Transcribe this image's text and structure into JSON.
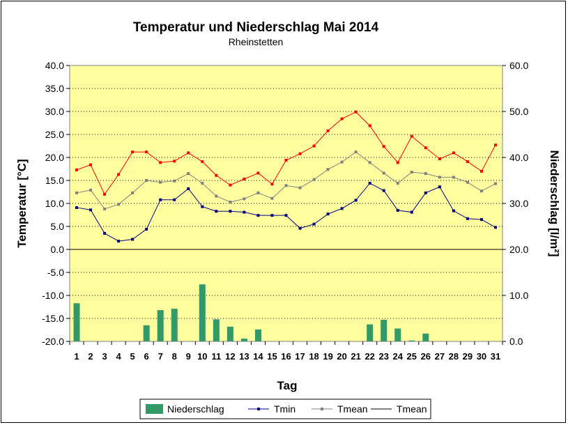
{
  "chart_data": {
    "type": "bar+line",
    "title": "Temperatur und Niederschlag Mai 2014",
    "subtitle": "Rheinstetten",
    "xlabel": "Tag",
    "ylabel_left": "Temperatur [°C]",
    "ylabel_right": "Niederschlag [l/m²]",
    "ylim_left": [
      -20,
      40
    ],
    "ylim_right": [
      0,
      60
    ],
    "yticks_left": [
      "40.0",
      "35.0",
      "30.0",
      "25.0",
      "20.0",
      "15.0",
      "10.0",
      "5.0",
      "0.0",
      "-5.0",
      "-10.0",
      "-15.0",
      "-20.0"
    ],
    "yticks_right": [
      "60.0",
      "50.0",
      "40.0",
      "30.0",
      "20.0",
      "10.0",
      "0.0"
    ],
    "categories": [
      "1",
      "2",
      "3",
      "4",
      "5",
      "6",
      "7",
      "8",
      "9",
      "10",
      "11",
      "12",
      "13",
      "14",
      "15",
      "16",
      "17",
      "18",
      "19",
      "20",
      "21",
      "22",
      "23",
      "24",
      "25",
      "26",
      "27",
      "28",
      "29",
      "30",
      "31"
    ],
    "plot_background": "#ffffa0",
    "grid": true,
    "legend_position": "bottom",
    "series": [
      {
        "name": "Niederschlag",
        "kind": "bar",
        "axis": "right",
        "color": "#339966",
        "values": [
          8.3,
          0,
          0,
          0,
          0,
          3.5,
          6.8,
          7.1,
          0,
          12.4,
          4.8,
          3.2,
          0.6,
          2.6,
          0,
          0,
          0,
          0,
          0,
          0,
          0,
          3.7,
          4.7,
          2.8,
          0.2,
          1.7,
          0,
          0,
          0,
          0,
          0
        ]
      },
      {
        "name": "Tmin",
        "kind": "line",
        "axis": "left",
        "color": "#000080",
        "values": [
          9.1,
          8.6,
          3.5,
          1.8,
          2.2,
          4.4,
          10.8,
          10.8,
          13.2,
          9.3,
          8.3,
          8.3,
          8.1,
          7.4,
          7.4,
          7.4,
          4.6,
          5.5,
          7.7,
          8.9,
          10.7,
          14.4,
          12.8,
          8.5,
          8.1,
          12.3,
          13.6,
          8.4,
          6.7,
          6.5,
          4.8
        ]
      },
      {
        "name": "Tmean",
        "kind": "line",
        "axis": "left",
        "color": "#808080",
        "values": [
          12.3,
          12.9,
          8.8,
          9.8,
          12.3,
          15.0,
          14.6,
          14.9,
          16.5,
          14.4,
          11.6,
          10.3,
          11.0,
          12.3,
          11.1,
          13.9,
          13.4,
          15.2,
          17.4,
          19.0,
          21.2,
          18.9,
          16.6,
          14.4,
          16.8,
          16.5,
          15.7,
          15.7,
          14.6,
          12.7,
          14.3
        ]
      },
      {
        "name": "Tmean",
        "kind": "line",
        "axis": "left",
        "color": "#ff0000",
        "values": [
          17.3,
          18.4,
          12.0,
          16.3,
          21.2,
          21.2,
          18.9,
          19.2,
          21.0,
          19.1,
          16.1,
          14.0,
          15.3,
          16.6,
          14.2,
          19.4,
          20.8,
          22.5,
          25.8,
          28.4,
          29.9,
          26.9,
          22.4,
          18.9,
          24.6,
          22.1,
          19.7,
          21.0,
          19.1,
          17.0,
          22.7
        ]
      }
    ]
  }
}
